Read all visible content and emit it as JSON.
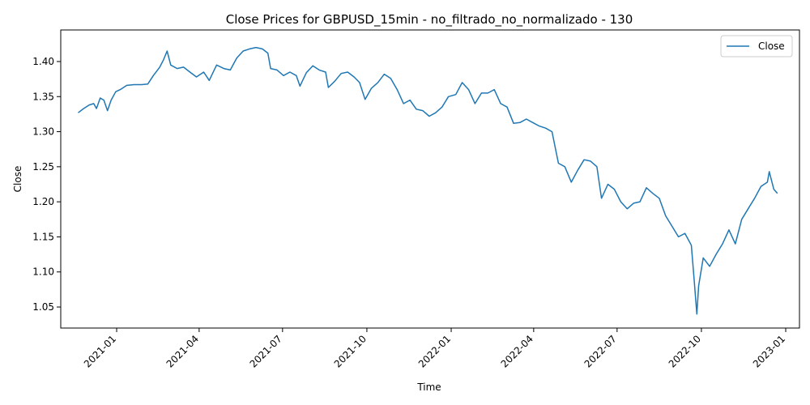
{
  "chart_data": {
    "type": "line",
    "title": "Close Prices for GBPUSD_15min - no_filtrado_no_normalizado - 130",
    "xlabel": "Time",
    "ylabel": "Close",
    "xlim": [
      "2020-11-01",
      "2023-01-16"
    ],
    "ylim": [
      1.02,
      1.445
    ],
    "x_ticks": [
      "2021-01",
      "2021-04",
      "2021-07",
      "2021-10",
      "2022-01",
      "2022-04",
      "2022-07",
      "2022-10",
      "2023-01"
    ],
    "y_ticks": [
      "1.05",
      "1.10",
      "1.15",
      "1.20",
      "1.25",
      "1.30",
      "1.35",
      "1.40"
    ],
    "grid": false,
    "legend": "top-right",
    "color": "#1f77b4",
    "series": [
      {
        "name": "Close",
        "points": [
          [
            "2020-11-20",
            1.327
          ],
          [
            "2020-11-26",
            1.333
          ],
          [
            "2020-12-02",
            1.338
          ],
          [
            "2020-12-07",
            1.34
          ],
          [
            "2020-12-10",
            1.333
          ],
          [
            "2020-12-14",
            1.348
          ],
          [
            "2020-12-18",
            1.345
          ],
          [
            "2020-12-22",
            1.33
          ],
          [
            "2020-12-26",
            1.345
          ],
          [
            "2020-12-31",
            1.357
          ],
          [
            "2021-01-05",
            1.36
          ],
          [
            "2021-01-12",
            1.366
          ],
          [
            "2021-01-20",
            1.367
          ],
          [
            "2021-01-28",
            1.367
          ],
          [
            "2021-02-04",
            1.368
          ],
          [
            "2021-02-10",
            1.38
          ],
          [
            "2021-02-17",
            1.392
          ],
          [
            "2021-02-21",
            1.402
          ],
          [
            "2021-02-25",
            1.415
          ],
          [
            "2021-03-01",
            1.395
          ],
          [
            "2021-03-08",
            1.39
          ],
          [
            "2021-03-15",
            1.392
          ],
          [
            "2021-03-22",
            1.385
          ],
          [
            "2021-03-29",
            1.378
          ],
          [
            "2021-04-06",
            1.385
          ],
          [
            "2021-04-12",
            1.373
          ],
          [
            "2021-04-20",
            1.395
          ],
          [
            "2021-04-28",
            1.39
          ],
          [
            "2021-05-05",
            1.388
          ],
          [
            "2021-05-12",
            1.405
          ],
          [
            "2021-05-19",
            1.415
          ],
          [
            "2021-05-26",
            1.418
          ],
          [
            "2021-06-02",
            1.42
          ],
          [
            "2021-06-09",
            1.418
          ],
          [
            "2021-06-15",
            1.412
          ],
          [
            "2021-06-18",
            1.39
          ],
          [
            "2021-06-25",
            1.388
          ],
          [
            "2021-07-02",
            1.38
          ],
          [
            "2021-07-09",
            1.385
          ],
          [
            "2021-07-16",
            1.38
          ],
          [
            "2021-07-20",
            1.365
          ],
          [
            "2021-07-27",
            1.384
          ],
          [
            "2021-08-03",
            1.394
          ],
          [
            "2021-08-10",
            1.388
          ],
          [
            "2021-08-17",
            1.385
          ],
          [
            "2021-08-20",
            1.363
          ],
          [
            "2021-08-27",
            1.372
          ],
          [
            "2021-09-03",
            1.383
          ],
          [
            "2021-09-10",
            1.385
          ],
          [
            "2021-09-17",
            1.378
          ],
          [
            "2021-09-23",
            1.37
          ],
          [
            "2021-09-29",
            1.346
          ],
          [
            "2021-10-06",
            1.362
          ],
          [
            "2021-10-13",
            1.37
          ],
          [
            "2021-10-20",
            1.382
          ],
          [
            "2021-10-27",
            1.376
          ],
          [
            "2021-11-03",
            1.36
          ],
          [
            "2021-11-10",
            1.34
          ],
          [
            "2021-11-17",
            1.345
          ],
          [
            "2021-11-24",
            1.332
          ],
          [
            "2021-12-01",
            1.33
          ],
          [
            "2021-12-08",
            1.322
          ],
          [
            "2021-12-15",
            1.327
          ],
          [
            "2021-12-22",
            1.335
          ],
          [
            "2021-12-29",
            1.35
          ],
          [
            "2022-01-06",
            1.353
          ],
          [
            "2022-01-13",
            1.37
          ],
          [
            "2022-01-20",
            1.36
          ],
          [
            "2022-01-27",
            1.34
          ],
          [
            "2022-02-03",
            1.355
          ],
          [
            "2022-02-10",
            1.355
          ],
          [
            "2022-02-17",
            1.36
          ],
          [
            "2022-02-24",
            1.34
          ],
          [
            "2022-03-03",
            1.335
          ],
          [
            "2022-03-10",
            1.312
          ],
          [
            "2022-03-17",
            1.313
          ],
          [
            "2022-03-24",
            1.318
          ],
          [
            "2022-03-31",
            1.313
          ],
          [
            "2022-04-07",
            1.308
          ],
          [
            "2022-04-14",
            1.305
          ],
          [
            "2022-04-21",
            1.3
          ],
          [
            "2022-04-28",
            1.255
          ],
          [
            "2022-05-05",
            1.25
          ],
          [
            "2022-05-12",
            1.228
          ],
          [
            "2022-05-19",
            1.245
          ],
          [
            "2022-05-26",
            1.26
          ],
          [
            "2022-06-02",
            1.258
          ],
          [
            "2022-06-09",
            1.25
          ],
          [
            "2022-06-14",
            1.205
          ],
          [
            "2022-06-21",
            1.225
          ],
          [
            "2022-06-28",
            1.218
          ],
          [
            "2022-07-05",
            1.2
          ],
          [
            "2022-07-12",
            1.19
          ],
          [
            "2022-07-19",
            1.198
          ],
          [
            "2022-07-26",
            1.2
          ],
          [
            "2022-08-02",
            1.22
          ],
          [
            "2022-08-09",
            1.212
          ],
          [
            "2022-08-16",
            1.205
          ],
          [
            "2022-08-23",
            1.18
          ],
          [
            "2022-08-30",
            1.165
          ],
          [
            "2022-09-06",
            1.15
          ],
          [
            "2022-09-13",
            1.155
          ],
          [
            "2022-09-20",
            1.138
          ],
          [
            "2022-09-23",
            1.09
          ],
          [
            "2022-09-26",
            1.04
          ],
          [
            "2022-09-28",
            1.08
          ],
          [
            "2022-10-03",
            1.12
          ],
          [
            "2022-10-10",
            1.108
          ],
          [
            "2022-10-17",
            1.125
          ],
          [
            "2022-10-24",
            1.14
          ],
          [
            "2022-10-31",
            1.16
          ],
          [
            "2022-11-07",
            1.14
          ],
          [
            "2022-11-14",
            1.175
          ],
          [
            "2022-11-21",
            1.19
          ],
          [
            "2022-11-28",
            1.205
          ],
          [
            "2022-12-05",
            1.222
          ],
          [
            "2022-12-12",
            1.228
          ],
          [
            "2022-12-14",
            1.243
          ],
          [
            "2022-12-19",
            1.218
          ],
          [
            "2022-12-23",
            1.212
          ]
        ]
      }
    ]
  }
}
